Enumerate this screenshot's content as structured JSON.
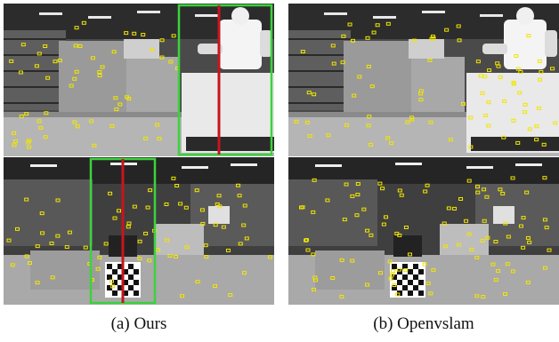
{
  "figure": {
    "captions": {
      "left": "(a) Ours",
      "right": "(b) Openvslam"
    }
  },
  "colors": {
    "feature_marker": "#f2e600",
    "detection_box": "#3cd23c",
    "dividing_line": "#c8141e"
  },
  "scene": {
    "top": {
      "description": "factory-floor scene with a white humanoid robot on a cart at right"
    },
    "bottom": {
      "description": "warehouse scene with a checkerboard calibration target in the foreground"
    }
  }
}
